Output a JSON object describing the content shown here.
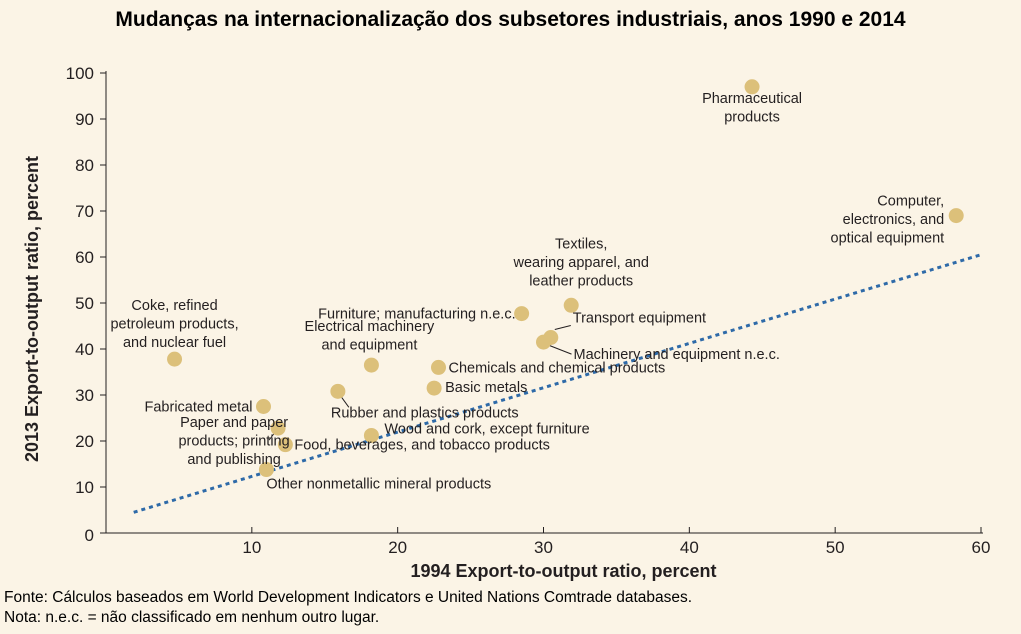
{
  "title": "Mudanças na internacionalização dos subsetores industriais, anos 1990 e 2014",
  "footer": {
    "source": "Fonte: Cálculos baseados em World Development Indicators e United Nations Comtrade databases.",
    "note": "Nota: n.e.c. = não classificado em nenhum outro lugar."
  },
  "colors": {
    "point": "#dcc07a",
    "trend": "#2e6aa8",
    "axis": "#231f20",
    "background": "#fbf4e6"
  },
  "chart_data": {
    "type": "scatter",
    "xlabel": "1994 Export-to-output ratio, percent",
    "ylabel": "2013 Export-to-output ratio, percent",
    "xlim": [
      0,
      60
    ],
    "ylim": [
      0,
      100
    ],
    "xticks": [
      10,
      20,
      30,
      40,
      50,
      60
    ],
    "yticks": [
      0,
      10,
      20,
      30,
      40,
      50,
      60,
      70,
      80,
      90,
      100
    ],
    "grid": false,
    "points": [
      {
        "label": "Pharmaceutical\nproducts",
        "x": 44.3,
        "y": 97
      },
      {
        "label": "Computer,\nelectronics, and\noptical equipment",
        "x": 58.3,
        "y": 69
      },
      {
        "label": "Textiles,\nwearing apparel, and\nleather products",
        "x": 31.9,
        "y": 49.5
      },
      {
        "label": "Furniture; manufacturing n.e.c.",
        "x": 28.5,
        "y": 47.7
      },
      {
        "label": "Transport equipment",
        "x": 30.5,
        "y": 42.5
      },
      {
        "label": "Machinery and equipment n.e.c.",
        "x": 30.0,
        "y": 41.5
      },
      {
        "label": "Coke, refined\npetroleum products,\nand nuclear fuel",
        "x": 4.7,
        "y": 37.8
      },
      {
        "label": "Electrical machinery\nand equipment",
        "x": 18.2,
        "y": 36.5
      },
      {
        "label": "Chemicals and chemical products",
        "x": 22.8,
        "y": 36.0
      },
      {
        "label": "Basic metals",
        "x": 22.5,
        "y": 31.5
      },
      {
        "label": "Rubber and plastics products",
        "x": 15.9,
        "y": 30.8
      },
      {
        "label": "Fabricated metal",
        "x": 10.8,
        "y": 27.5
      },
      {
        "label": "Paper and paper\nproducts; printing\nand publishing",
        "x": 11.8,
        "y": 22.8
      },
      {
        "label": "Wood and cork, except furniture",
        "x": 18.2,
        "y": 21.2
      },
      {
        "label": "Food, beverages, and tobacco products",
        "x": 12.3,
        "y": 19.2
      },
      {
        "label": "Other nonmetallic mineral products",
        "x": 11.0,
        "y": 13.8
      }
    ],
    "trendline": {
      "x": [
        1.9,
        60
      ],
      "y": [
        4.5,
        60.5
      ],
      "style": "dotted"
    }
  }
}
